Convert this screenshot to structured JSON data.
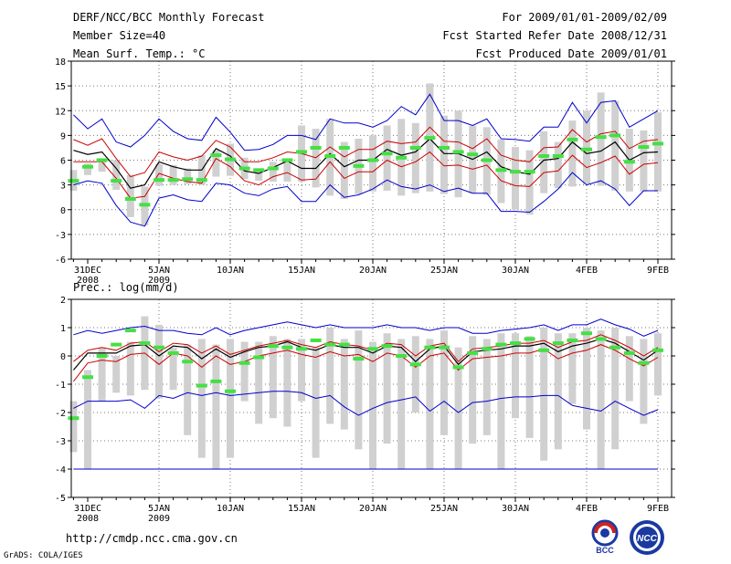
{
  "header": {
    "title": "DERF/NCC/BCC Monthly Forecast",
    "member_size": "Member Size=40",
    "temp_variable": "Mean Surf. Temp.: °C",
    "period": "For 2009/01/01-2009/02/09",
    "started_date": "Fcst Started Refer Date 2008/12/31",
    "produced_date": "Fcst Produced Date 2009/01/01"
  },
  "footer": {
    "url": "http://cmdp.ncc.cma.gov.cn",
    "grads": "GrADS: COLA/IGES",
    "logo_left_text": "BCC",
    "logo_right_text": "NCC"
  },
  "colors": {
    "max_min": "#0000cc",
    "std": "#cc0000",
    "mean": "#000000",
    "box": "#d0d0d0",
    "obs": "#44e044",
    "grid": "#777777"
  },
  "chart_data": [
    {
      "type": "box",
      "title": "Mean Surf. Temp.: °C",
      "ylabel": "Mean Surf. Temp.: °C",
      "ylim": [
        -6,
        18
      ],
      "yticks": [
        -6,
        -3,
        0,
        3,
        6,
        9,
        12,
        15,
        18
      ],
      "x_day_range": [
        0,
        40
      ],
      "xtick_days": [
        0,
        5,
        10,
        15,
        20,
        25,
        30,
        35,
        40
      ],
      "xtick_labels": [
        "31DEC",
        "5JAN",
        "10JAN",
        "15JAN",
        "20JAN",
        "25JAN",
        "30JAN",
        "4FEB",
        "9FEB"
      ],
      "xtick_sublabels": [
        "2008",
        "2009",
        "",
        "",
        "",
        "",
        "",
        "",
        ""
      ],
      "grid": true,
      "series": [
        {
          "name": "max",
          "values": [
            11.5,
            9.8,
            11.0,
            8.2,
            7.6,
            9.0,
            11.0,
            9.5,
            8.6,
            8.4,
            11.2,
            9.4,
            7.2,
            7.3,
            7.9,
            9.0,
            9.0,
            8.5,
            11.0,
            10.5,
            10.5,
            10.0,
            10.8,
            12.5,
            11.5,
            14.0,
            10.8,
            10.8,
            10.2,
            11.0,
            8.6,
            8.5,
            8.3,
            10.0,
            10.0,
            13.0,
            10.5,
            13.0,
            13.2,
            10.0,
            11.0,
            12.0
          ]
        },
        {
          "name": "std_upper",
          "values": [
            8.5,
            7.8,
            8.6,
            6.2,
            4.0,
            4.5,
            7.0,
            6.4,
            6.0,
            6.5,
            8.4,
            7.6,
            5.8,
            5.8,
            6.3,
            7.0,
            6.8,
            6.3,
            7.6,
            6.4,
            7.3,
            7.3,
            8.3,
            8.0,
            8.2,
            10.0,
            8.3,
            8.2,
            7.4,
            8.6,
            6.6,
            6.0,
            5.8,
            7.5,
            7.6,
            9.7,
            8.2,
            9.2,
            9.5,
            7.4,
            8.3,
            8.5
          ]
        },
        {
          "name": "mean",
          "values": [
            7.2,
            6.7,
            7.0,
            5.0,
            2.6,
            3.0,
            5.8,
            5.2,
            4.8,
            4.8,
            7.4,
            6.5,
            4.7,
            4.4,
            5.1,
            5.9,
            5.0,
            5.0,
            6.8,
            5.2,
            6.0,
            6.0,
            7.3,
            6.6,
            7.0,
            8.6,
            6.8,
            6.8,
            6.1,
            7.0,
            5.2,
            4.6,
            4.3,
            6.0,
            6.2,
            8.2,
            6.8,
            7.1,
            8.2,
            6.0,
            6.9,
            7.0
          ]
        },
        {
          "name": "std_lower",
          "values": [
            5.8,
            5.8,
            5.8,
            3.8,
            1.4,
            1.6,
            4.4,
            3.8,
            3.4,
            3.2,
            6.2,
            5.2,
            3.5,
            3.0,
            4.0,
            4.5,
            3.6,
            3.7,
            5.8,
            3.8,
            4.6,
            4.6,
            6.0,
            5.2,
            5.8,
            7.0,
            5.3,
            5.4,
            4.9,
            5.4,
            3.5,
            2.9,
            2.8,
            4.5,
            4.7,
            6.6,
            5.1,
            5.7,
            6.5,
            4.3,
            5.5,
            5.7
          ]
        },
        {
          "name": "min",
          "values": [
            3.0,
            3.5,
            3.2,
            0.5,
            -1.5,
            -2.0,
            1.4,
            1.8,
            1.2,
            1.0,
            3.2,
            3.0,
            2.0,
            1.7,
            2.5,
            2.8,
            1.0,
            1.0,
            3.0,
            1.5,
            1.8,
            2.5,
            3.6,
            2.8,
            2.5,
            3.0,
            2.2,
            2.6,
            2.0,
            2.0,
            -0.2,
            -0.2,
            -0.3,
            1.0,
            2.5,
            4.5,
            3.0,
            3.5,
            2.5,
            0.5,
            2.3,
            2.3
          ]
        },
        {
          "name": "box_top",
          "values": [
            4.8,
            5.6,
            6.0,
            6.0,
            4.2,
            2.8,
            5.5,
            5.4,
            5.0,
            6.6,
            7.2,
            8.0,
            6.3,
            5.0,
            5.8,
            6.2,
            10.2,
            9.8,
            11.0,
            8.2,
            8.6,
            9.0,
            10.2,
            11.0,
            10.5,
            15.3,
            11.4,
            12.0,
            10.2,
            10.0,
            8.5,
            7.6,
            7.2,
            9.5,
            8.2,
            10.8,
            12.0,
            14.2,
            13.2,
            9.8,
            9.6,
            11.8
          ]
        },
        {
          "name": "box_bottom",
          "values": [
            2.3,
            4.2,
            4.6,
            2.4,
            -0.9,
            -1.9,
            2.9,
            3.0,
            3.1,
            3.0,
            4.0,
            4.1,
            3.7,
            3.5,
            3.4,
            3.4,
            3.4,
            2.7,
            1.7,
            1.3,
            1.9,
            2.2,
            2.3,
            1.7,
            2.0,
            2.2,
            1.9,
            1.5,
            2.0,
            1.8,
            0.8,
            0.0,
            -0.6,
            2.0,
            2.6,
            2.8,
            3.1,
            2.9,
            2.3,
            2.2,
            2.2,
            2.2
          ]
        },
        {
          "name": "observed",
          "values": [
            3.5,
            5.2,
            6.0,
            3.5,
            1.3,
            0.6,
            3.6,
            3.6,
            3.7,
            3.6,
            6.6,
            6.1,
            5.0,
            4.8,
            5.0,
            6.0,
            7.0,
            7.5,
            6.5,
            7.5,
            5.3,
            6.0,
            6.8,
            6.3,
            7.5,
            8.7,
            7.5,
            7.0,
            6.7,
            6.0,
            4.8,
            4.6,
            4.6,
            6.5,
            6.5,
            8.5,
            7.3,
            8.8,
            9.0,
            5.8,
            7.6,
            8.0
          ]
        }
      ]
    },
    {
      "type": "box",
      "title": "Prec.: log(mm/d)",
      "ylabel": "Prec.: log(mm/d)",
      "ylim": [
        -5,
        2
      ],
      "yticks": [
        -5,
        -4,
        -3,
        -2,
        -1,
        0,
        1,
        2
      ],
      "x_day_range": [
        0,
        40
      ],
      "xtick_days": [
        0,
        5,
        10,
        15,
        20,
        25,
        30,
        35,
        40
      ],
      "xtick_labels": [
        "31DEC",
        "5JAN",
        "10JAN",
        "15JAN",
        "20JAN",
        "25JAN",
        "30JAN",
        "4FEB",
        "9FEB"
      ],
      "xtick_sublabels": [
        "2008",
        "2009",
        "",
        "",
        "",
        "",
        "",
        "",
        ""
      ],
      "grid": true,
      "series": [
        {
          "name": "max",
          "values": [
            0.75,
            0.9,
            0.8,
            0.9,
            1.0,
            1.05,
            0.9,
            0.9,
            0.8,
            0.75,
            1.0,
            0.75,
            0.9,
            1.0,
            1.1,
            1.2,
            1.1,
            1.0,
            1.1,
            1.0,
            1.0,
            1.0,
            1.1,
            1.0,
            1.0,
            0.9,
            1.0,
            1.0,
            0.8,
            0.8,
            0.9,
            0.95,
            1.0,
            1.1,
            0.9,
            1.1,
            1.1,
            1.3,
            1.1,
            0.95,
            0.7,
            0.9
          ]
        },
        {
          "name": "std_upper",
          "values": [
            -0.2,
            0.2,
            0.3,
            0.2,
            0.45,
            0.5,
            0.15,
            0.45,
            0.4,
            0.1,
            0.35,
            0.05,
            0.2,
            0.35,
            0.45,
            0.55,
            0.4,
            0.3,
            0.5,
            0.4,
            0.35,
            0.2,
            0.45,
            0.4,
            0.0,
            0.35,
            0.45,
            -0.2,
            0.25,
            0.3,
            0.35,
            0.45,
            0.45,
            0.55,
            0.3,
            0.5,
            0.55,
            0.75,
            0.55,
            0.3,
            0.0,
            0.3
          ]
        },
        {
          "name": "mean",
          "values": [
            -0.5,
            0.1,
            0.1,
            0.1,
            0.35,
            0.4,
            0.0,
            0.35,
            0.3,
            -0.1,
            0.25,
            -0.05,
            0.15,
            0.3,
            0.35,
            0.5,
            0.3,
            0.2,
            0.4,
            0.3,
            0.3,
            0.1,
            0.35,
            0.3,
            -0.2,
            0.25,
            0.35,
            -0.3,
            0.15,
            0.2,
            0.25,
            0.35,
            0.35,
            0.45,
            0.15,
            0.35,
            0.45,
            0.6,
            0.45,
            0.15,
            -0.15,
            0.2
          ]
        },
        {
          "name": "std_lower",
          "values": [
            -0.9,
            -0.25,
            -0.15,
            -0.2,
            0.05,
            0.1,
            -0.3,
            0.1,
            0.0,
            -0.4,
            0.0,
            -0.3,
            -0.2,
            0.0,
            0.1,
            0.2,
            0.05,
            -0.05,
            0.15,
            0.0,
            0.05,
            -0.2,
            0.1,
            0.0,
            -0.4,
            0.0,
            0.1,
            -0.5,
            -0.1,
            -0.05,
            0.0,
            0.1,
            0.1,
            0.25,
            -0.1,
            0.1,
            0.2,
            0.4,
            0.2,
            -0.1,
            -0.35,
            -0.05
          ]
        },
        {
          "name": "min",
          "values": [
            -1.85,
            -1.6,
            -1.6,
            -1.6,
            -1.55,
            -1.85,
            -1.4,
            -1.5,
            -1.3,
            -1.4,
            -1.3,
            -1.4,
            -1.35,
            -1.3,
            -1.25,
            -1.25,
            -1.3,
            -1.5,
            -1.4,
            -1.8,
            -2.1,
            -1.85,
            -1.65,
            -1.55,
            -1.45,
            -1.95,
            -1.6,
            -2.0,
            -1.65,
            -1.6,
            -1.5,
            -1.45,
            -1.45,
            -1.4,
            -1.4,
            -1.75,
            -1.85,
            -1.95,
            -1.6,
            -1.85,
            -2.1,
            -1.9
          ]
        },
        {
          "name": "box_top",
          "values": [
            -1.6,
            -0.5,
            0.3,
            0.0,
            0.5,
            1.4,
            1.1,
            0.3,
            0.4,
            0.6,
            0.4,
            0.6,
            0.5,
            0.5,
            0.7,
            0.6,
            0.6,
            0.3,
            1.0,
            0.6,
            0.9,
            0.5,
            0.8,
            0.6,
            0.7,
            0.6,
            0.9,
            0.3,
            0.7,
            0.6,
            0.8,
            0.8,
            0.7,
            1.0,
            0.8,
            0.8,
            1.0,
            0.9,
            1.0,
            0.7,
            0.6,
            0.8
          ]
        },
        {
          "name": "box_bottom",
          "values": [
            -3.4,
            -4.0,
            -1.6,
            -1.3,
            -1.4,
            -1.2,
            -1.5,
            -1.2,
            -2.8,
            -3.6,
            -4.0,
            -3.6,
            -1.6,
            -2.4,
            -2.2,
            -2.5,
            -1.6,
            -3.6,
            -2.4,
            -2.6,
            -3.3,
            -4.0,
            -3.1,
            -4.0,
            -2.0,
            -4.0,
            -2.8,
            -4.0,
            -3.1,
            -2.8,
            -4.0,
            -2.2,
            -2.9,
            -3.7,
            -3.3,
            -1.7,
            -2.6,
            -4.0,
            -3.3,
            -1.6,
            -2.4,
            -1.4
          ]
        },
        {
          "name": "observed",
          "values": [
            -2.2,
            -0.75,
            0.0,
            0.4,
            0.9,
            0.45,
            0.3,
            0.1,
            -0.2,
            -1.05,
            -0.9,
            -1.25,
            -0.25,
            -0.05,
            0.35,
            0.3,
            0.25,
            0.55,
            0.4,
            0.4,
            -0.1,
            0.25,
            0.35,
            0.0,
            -0.3,
            0.3,
            0.3,
            -0.4,
            0.1,
            0.25,
            0.4,
            0.45,
            0.6,
            0.2,
            0.45,
            0.55,
            0.8,
            0.6,
            0.3,
            0.1,
            -0.25,
            0.2
          ]
        }
      ]
    }
  ]
}
